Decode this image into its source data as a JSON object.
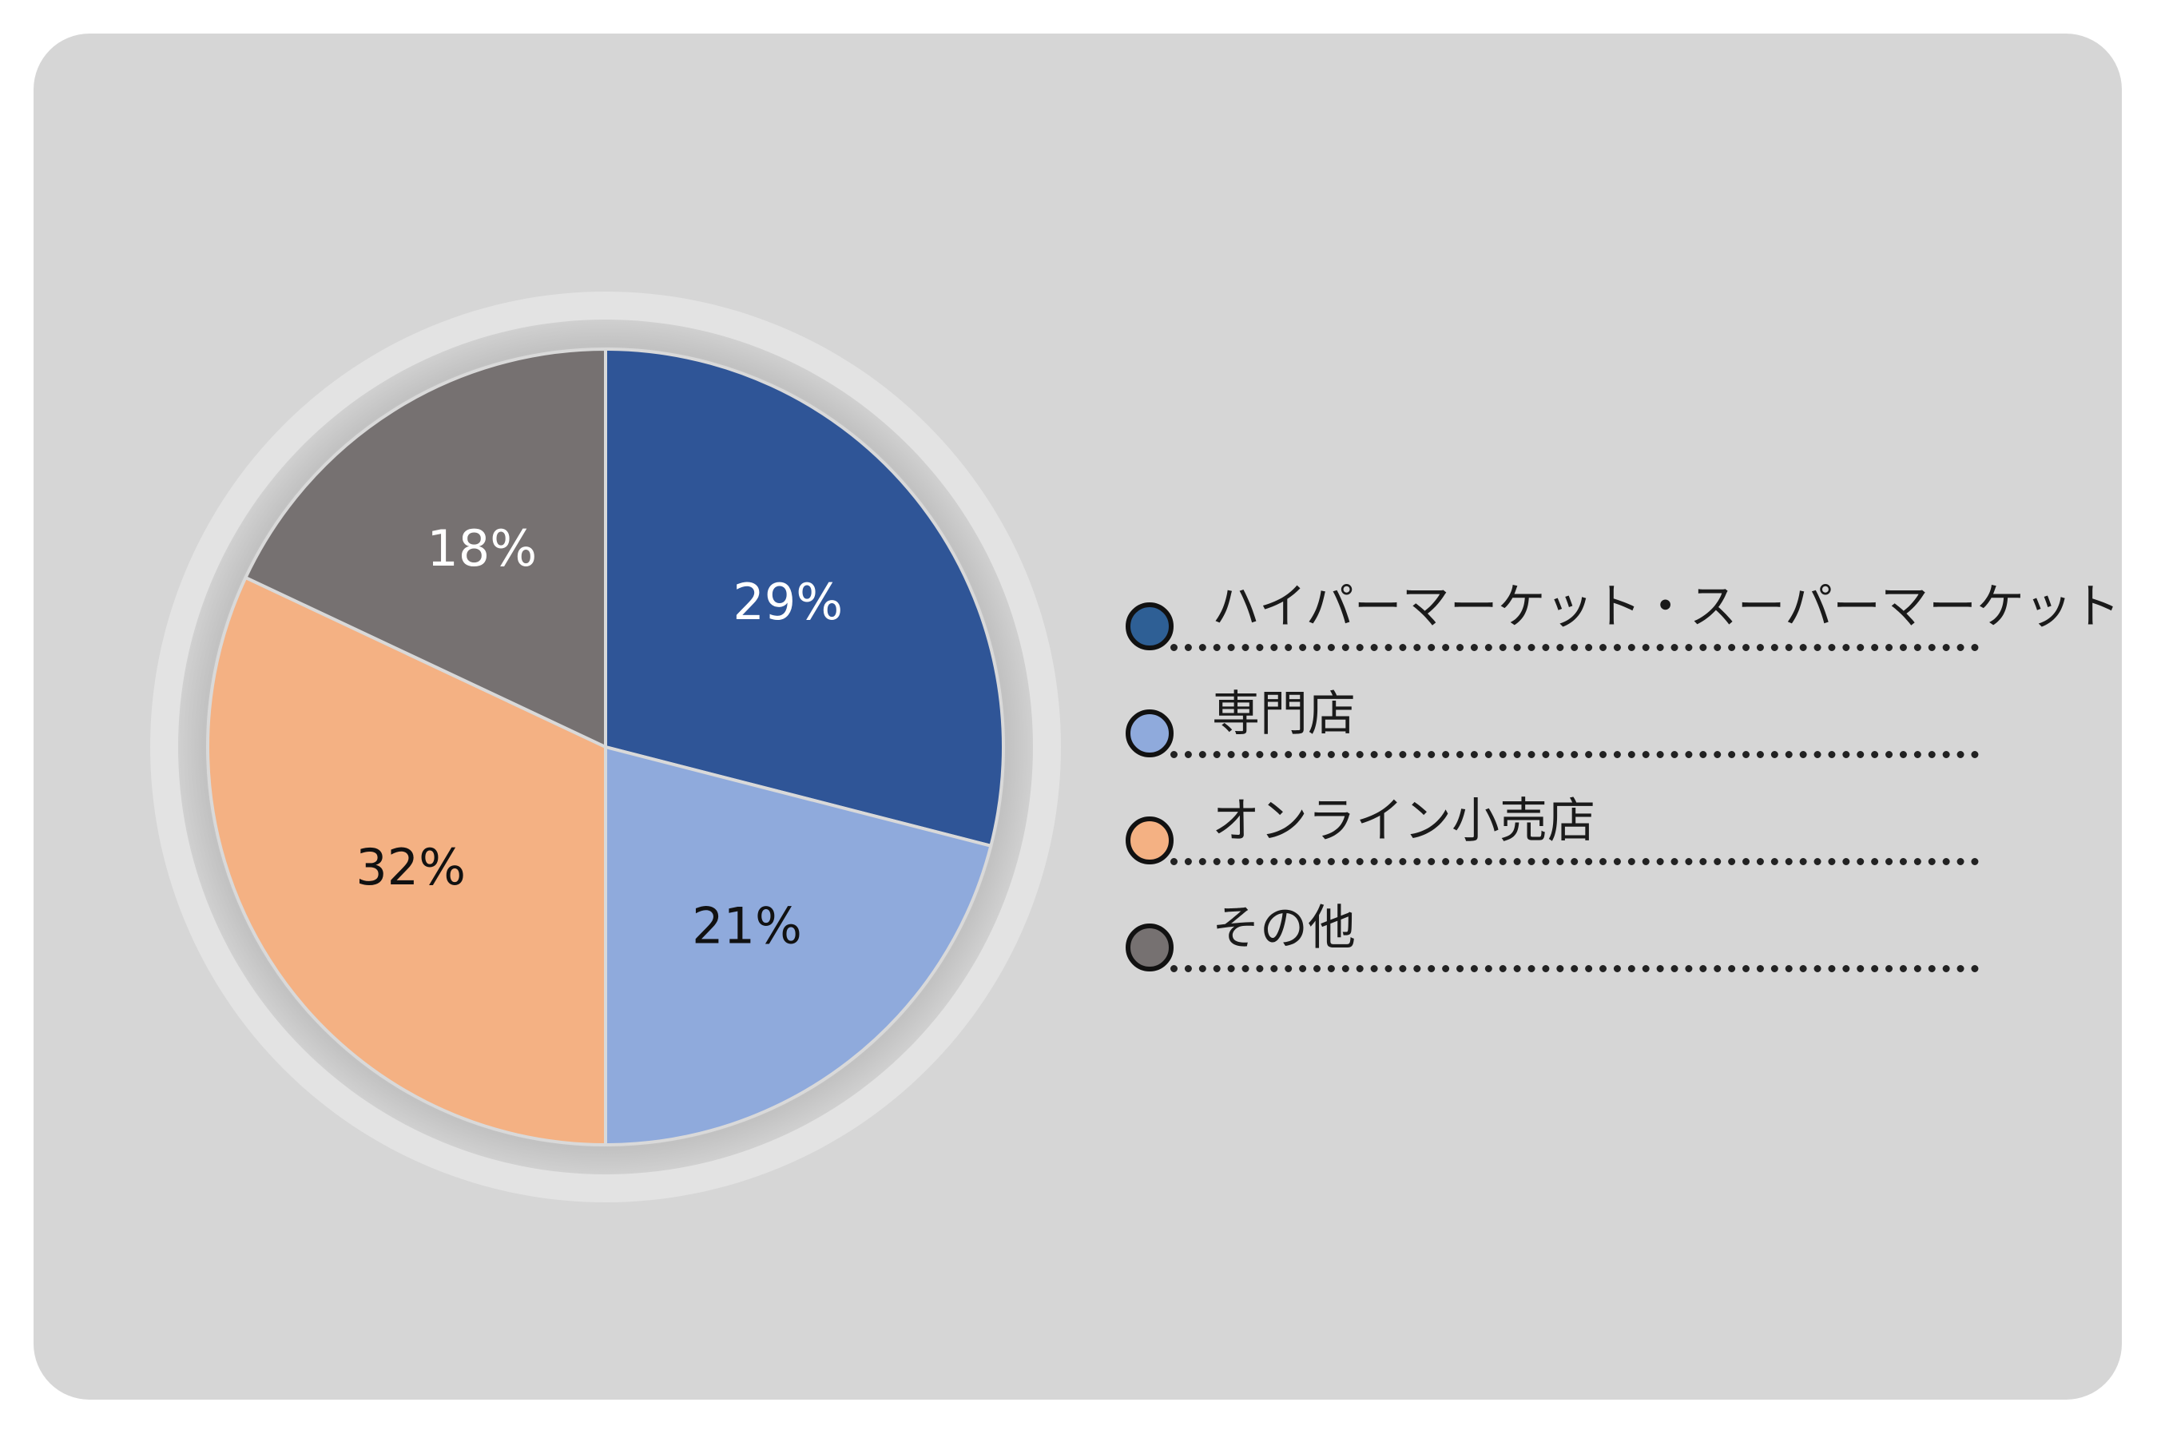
{
  "chart_data": {
    "type": "pie",
    "title": "",
    "slices": [
      {
        "label": "ハイパーマーケット・スーパーマーケット",
        "value": 29,
        "display": "29%",
        "color": "#2f5597",
        "label_color": "#ffffff"
      },
      {
        "label": "専門店",
        "value": 21,
        "display": "21%",
        "color": "#8faadc",
        "label_color": "#111111"
      },
      {
        "label": "オンライン小売店",
        "value": 32,
        "display": "32%",
        "color": "#f4b183",
        "label_color": "#111111"
      },
      {
        "label": "その他",
        "value": 18,
        "display": "18%",
        "color": "#767171",
        "label_color": "#ffffff"
      }
    ],
    "legend_position": "right",
    "start": "top",
    "direction": "clockwise"
  },
  "legend": {
    "items": [
      {
        "label": "ハイパーマーケット・スーパーマーケット",
        "color": "#2e5f95"
      },
      {
        "label": "専門店",
        "color": "#8faadc"
      },
      {
        "label": "オンライン小売店",
        "color": "#f4b183"
      },
      {
        "label": "その他",
        "color": "#767171"
      }
    ]
  }
}
